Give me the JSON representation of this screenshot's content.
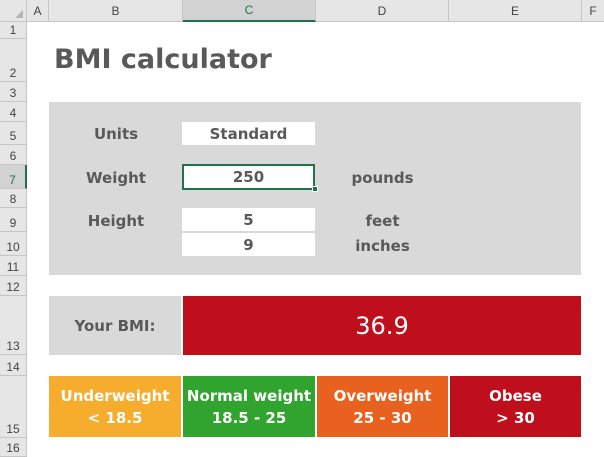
{
  "columns": [
    "A",
    "B",
    "C",
    "D",
    "E",
    "F"
  ],
  "rows": [
    "1",
    "2",
    "3",
    "4",
    "5",
    "6",
    "7",
    "8",
    "9",
    "10",
    "11",
    "12",
    "13",
    "14",
    "15",
    "16"
  ],
  "selected_column": "C",
  "selected_row": "7",
  "title": "BMI calculator",
  "form": {
    "units_label": "Units",
    "units_value": "Standard",
    "weight_label": "Weight",
    "weight_value": "250",
    "weight_unit": "pounds",
    "height_label": "Height",
    "height_feet": "5",
    "height_feet_unit": "feet",
    "height_inches": "9",
    "height_inches_unit": "inches"
  },
  "result": {
    "label": "Your BMI:",
    "value": "36.9",
    "color": "#c00f1c"
  },
  "categories": [
    {
      "name": "Underweight",
      "range": "< 18.5",
      "color": "#f6ad2e"
    },
    {
      "name": "Normal weight",
      "range": "18.5 - 25",
      "color": "#31a32f"
    },
    {
      "name": "Overweight",
      "range": "25 - 30",
      "color": "#e8611f"
    },
    {
      "name": "Obese",
      "range": "> 30",
      "color": "#c00f1c"
    }
  ]
}
